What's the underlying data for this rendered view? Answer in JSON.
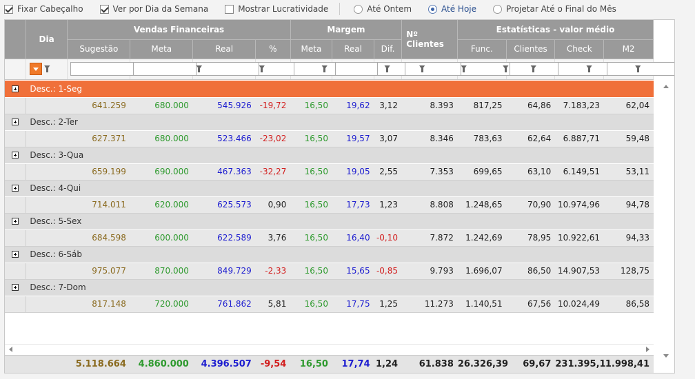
{
  "toolbar": {
    "fix_header": "Fixar Cabeçalho",
    "by_weekday": "Ver por Dia da Semana",
    "show_profit": "Mostrar Lucratividade",
    "until_yesterday": "Até Ontem",
    "until_today": "Até Hoje",
    "project_month": "Projetar Até o Final do Mês"
  },
  "header": {
    "dia": "Dia",
    "vendas": "Vendas Financeiras",
    "margem": "Margem",
    "clientes": "Nº Clientes",
    "estatisticas": "Estatísticas - valor médio",
    "sugestao": "Sugestão",
    "meta": "Meta",
    "real": "Real",
    "pct": "%",
    "m_meta": "Meta",
    "m_real": "Real",
    "dif": "Dif.",
    "func": "Func.",
    "e_clientes": "Clientes",
    "check": "Check",
    "m2": "M2"
  },
  "colors": {
    "active_row": "#f0703a",
    "header_bg": "#9a9a9a"
  },
  "rows": [
    {
      "label": "Desc.: 1-Seg",
      "active": true,
      "v": [
        "641.259",
        "680.000",
        "545.926",
        "-19,72",
        "16,50",
        "19,62",
        "3,12",
        "8.393",
        "817,25",
        "64,86",
        "7.183,23",
        "62,04"
      ],
      "pct_red": true,
      "dif_red": false
    },
    {
      "label": "Desc.: 2-Ter",
      "active": false,
      "v": [
        "627.371",
        "680.000",
        "523.466",
        "-23,02",
        "16,50",
        "19,57",
        "3,07",
        "8.346",
        "783,63",
        "62,64",
        "6.887,71",
        "59,48"
      ],
      "pct_red": true,
      "dif_red": false
    },
    {
      "label": "Desc.: 3-Qua",
      "active": false,
      "v": [
        "659.199",
        "690.000",
        "467.363",
        "-32,27",
        "16,50",
        "19,05",
        "2,55",
        "7.353",
        "699,65",
        "63,10",
        "6.149,51",
        "53,11"
      ],
      "pct_red": true,
      "dif_red": false
    },
    {
      "label": "Desc.: 4-Qui",
      "active": false,
      "v": [
        "714.011",
        "620.000",
        "625.573",
        "0,90",
        "16,50",
        "17,73",
        "1,23",
        "8.808",
        "1.248,65",
        "70,90",
        "10.974,96",
        "94,78"
      ],
      "pct_red": false,
      "dif_red": false
    },
    {
      "label": "Desc.: 5-Sex",
      "active": false,
      "v": [
        "684.598",
        "600.000",
        "622.589",
        "3,76",
        "16,50",
        "16,40",
        "-0,10",
        "7.872",
        "1.242,69",
        "78,95",
        "10.922,61",
        "94,33"
      ],
      "pct_red": false,
      "dif_red": true
    },
    {
      "label": "Desc.: 6-Sáb",
      "active": false,
      "v": [
        "975.077",
        "870.000",
        "849.729",
        "-2,33",
        "16,50",
        "15,65",
        "-0,85",
        "9.793",
        "1.696,07",
        "86,50",
        "14.907,53",
        "128,75"
      ],
      "pct_red": true,
      "dif_red": true
    },
    {
      "label": "Desc.: 7-Dom",
      "active": false,
      "v": [
        "817.148",
        "720.000",
        "761.862",
        "5,81",
        "16,50",
        "17,75",
        "1,25",
        "11.273",
        "1.140,51",
        "67,56",
        "10.024,49",
        "86,58"
      ],
      "pct_red": false,
      "dif_red": false
    }
  ],
  "totals": [
    "5.118.664",
    "4.860.000",
    "4.396.507",
    "-9,54",
    "16,50",
    "17,74",
    "1,24",
    "61.838",
    "26.326,39",
    "69,67",
    "231.395,1",
    "1.998,41"
  ]
}
